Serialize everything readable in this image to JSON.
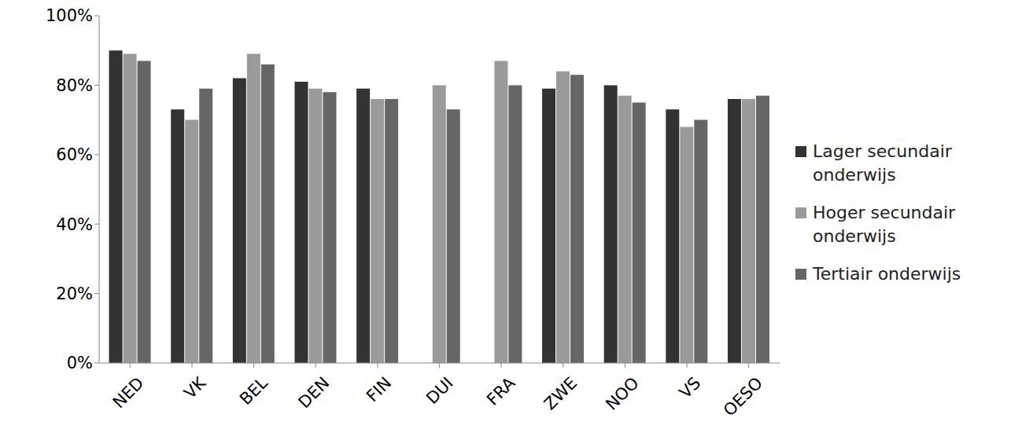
{
  "chart_data": {
    "type": "bar",
    "categories": [
      "NED",
      "VK",
      "BEL",
      "DEN",
      "FIN",
      "DUI",
      "FRA",
      "ZWE",
      "NOO",
      "VS",
      "OESO"
    ],
    "series": [
      {
        "name": "Lager secundair onderwijs",
        "color": "#333333",
        "values": [
          90,
          73,
          82,
          81,
          79,
          null,
          null,
          79,
          80,
          73,
          76
        ]
      },
      {
        "name": "Hoger secundair onderwijs",
        "color": "#9a9a9a",
        "values": [
          89,
          70,
          89,
          79,
          76,
          80,
          87,
          84,
          77,
          68,
          76
        ]
      },
      {
        "name": "Tertiair onderwijs",
        "color": "#666666",
        "values": [
          87,
          79,
          86,
          78,
          76,
          73,
          80,
          83,
          75,
          70,
          77
        ]
      }
    ],
    "ylim": [
      0,
      100
    ],
    "yticks": [
      {
        "value": 0,
        "label": "0%"
      },
      {
        "value": 20,
        "label": "20%"
      },
      {
        "value": 40,
        "label": "40%"
      },
      {
        "value": 60,
        "label": "60%"
      },
      {
        "value": 80,
        "label": "80%"
      },
      {
        "value": 100,
        "label": "100%"
      }
    ],
    "grid": false,
    "legend": "right"
  }
}
